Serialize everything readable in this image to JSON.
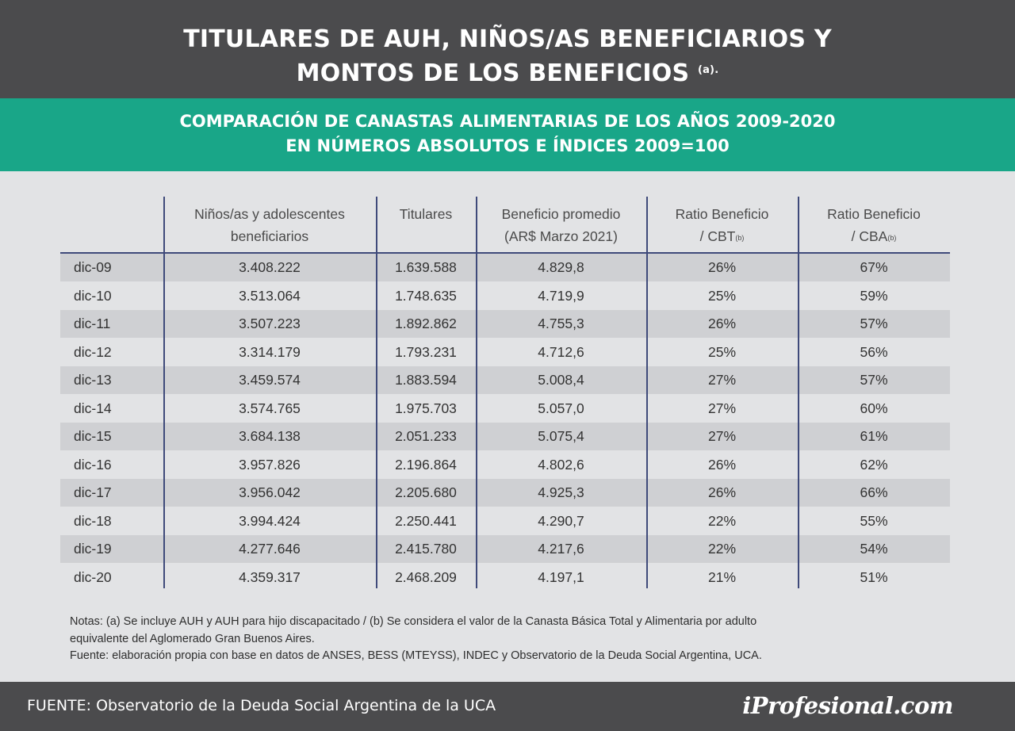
{
  "header": {
    "title_line1": "TITULARES DE AUH, NIÑOS/AS BENEFICIARIOS Y",
    "title_line2": "MONTOS DE LOS BENEFICIOS",
    "title_note": "(a)."
  },
  "band": {
    "line1": "COMPARACIÓN DE CANASTAS ALIMENTARIAS DE LOS AÑOS 2009-2020",
    "line2": "EN NÚMEROS ABSOLUTOS E ÍNDICES 2009=100"
  },
  "table": {
    "columns": [
      {
        "l1": "",
        "l2": "",
        "sup": ""
      },
      {
        "l1": "Niños/as y adolescentes",
        "l2": "beneficiarios",
        "sup": ""
      },
      {
        "l1": "Titulares",
        "l2": "",
        "sup": ""
      },
      {
        "l1": "Beneficio promedio",
        "l2": "(AR$ Marzo 2021)",
        "sup": ""
      },
      {
        "l1": "Ratio Beneficio",
        "l2": "/ CBT",
        "sup": "(b)"
      },
      {
        "l1": "Ratio Beneficio",
        "l2": "/ CBA",
        "sup": "(b)"
      }
    ],
    "rows": [
      [
        "dic-09",
        "3.408.222",
        "1.639.588",
        "4.829,8",
        "26%",
        "67%"
      ],
      [
        "dic-10",
        "3.513.064",
        "1.748.635",
        "4.719,9",
        "25%",
        "59%"
      ],
      [
        "dic-11",
        "3.507.223",
        "1.892.862",
        "4.755,3",
        "26%",
        "57%"
      ],
      [
        "dic-12",
        "3.314.179",
        "1.793.231",
        "4.712,6",
        "25%",
        "56%"
      ],
      [
        "dic-13",
        "3.459.574",
        "1.883.594",
        "5.008,4",
        "27%",
        "57%"
      ],
      [
        "dic-14",
        "3.574.765",
        "1.975.703",
        "5.057,0",
        "27%",
        "60%"
      ],
      [
        "dic-15",
        "3.684.138",
        "2.051.233",
        "5.075,4",
        "27%",
        "61%"
      ],
      [
        "dic-16",
        "3.957.826",
        "2.196.864",
        "4.802,6",
        "26%",
        "62%"
      ],
      [
        "dic-17",
        "3.956.042",
        "2.205.680",
        "4.925,3",
        "26%",
        "66%"
      ],
      [
        "dic-18",
        "3.994.424",
        "2.250.441",
        "4.290,7",
        "22%",
        "55%"
      ],
      [
        "dic-19",
        "4.277.646",
        "2.415.780",
        "4.217,6",
        "22%",
        "54%"
      ],
      [
        "dic-20",
        "4.359.317",
        "2.468.209",
        "4.197,1",
        "21%",
        "51%"
      ]
    ]
  },
  "notes": {
    "line1": "Notas:  (a) Se incluye AUH y AUH para hijo discapacitado / (b) Se considera el valor de la Canasta Básica Total y Alimentaria por adulto",
    "line2": "equivalente del Aglomerado Gran Buenos Aires.",
    "line3": "Fuente:  elaboración propia con base en datos de ANSES, BESS (MTEYSS), INDEC y Observatorio de la Deuda Social Argentina, UCA."
  },
  "footer": {
    "source": "FUENTE: Observatorio de la Deuda Social Argentina de la UCA",
    "logo": "iProfesional.com"
  }
}
